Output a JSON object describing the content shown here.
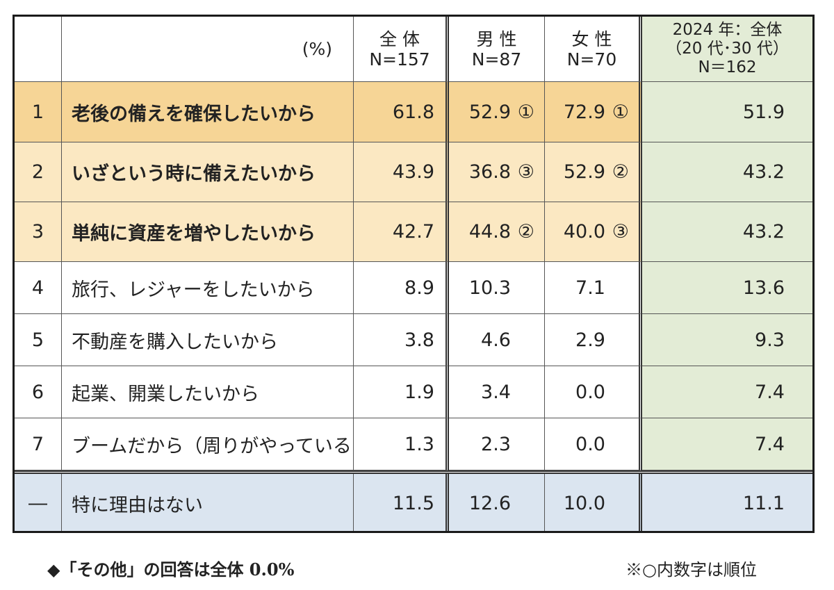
{
  "header": {
    "unit": "(%)",
    "all": {
      "line1": "全 体",
      "line2": "N=157"
    },
    "male": {
      "line1": "男 性",
      "line2": "N=87"
    },
    "female": {
      "line1": "女 性",
      "line2": "N=70"
    },
    "prev": {
      "line1": "2024 年：全体",
      "line2": "（20 代･30 代）",
      "line3": "N＝162"
    }
  },
  "rows": [
    {
      "rank": "1",
      "label": "老後の備えを確保したいから",
      "all": "61.8",
      "male": "52.9",
      "male_rank": "①",
      "female": "72.9",
      "female_rank": "①",
      "prev": "51.9"
    },
    {
      "rank": "2",
      "label": "いざという時に備えたいから",
      "all": "43.9",
      "male": "36.8",
      "male_rank": "③",
      "female": "52.9",
      "female_rank": "②",
      "prev": "43.2"
    },
    {
      "rank": "3",
      "label": "単純に資産を増やしたいから",
      "all": "42.7",
      "male": "44.8",
      "male_rank": "②",
      "female": "40.0",
      "female_rank": "③",
      "prev": "43.2"
    },
    {
      "rank": "4",
      "label": "旅行、レジャーをしたいから",
      "all": "8.9",
      "male": "10.3",
      "male_rank": "",
      "female": "7.1",
      "female_rank": "",
      "prev": "13.6"
    },
    {
      "rank": "5",
      "label": "不動産を購入したいから",
      "all": "3.8",
      "male": "4.6",
      "male_rank": "",
      "female": "2.9",
      "female_rank": "",
      "prev": "9.3"
    },
    {
      "rank": "6",
      "label": "起業、開業したいから",
      "all": "1.9",
      "male": "3.4",
      "male_rank": "",
      "female": "0.0",
      "female_rank": "",
      "prev": "7.4"
    },
    {
      "rank": "7",
      "label": "ブームだから（周りがやっているから）",
      "all": "1.3",
      "male": "2.3",
      "male_rank": "",
      "female": "0.0",
      "female_rank": "",
      "prev": "7.4"
    },
    {
      "rank": "―",
      "label": "特に理由はない",
      "all": "11.5",
      "male": "12.6",
      "male_rank": "",
      "female": "10.0",
      "female_rank": "",
      "prev": "11.1"
    }
  ],
  "footer": {
    "note_left": "◆「その他」の回答は全体 0.0%",
    "note_right": "※○内数字は順位"
  },
  "colors": {
    "top1": "#f6d596",
    "top23": "#fbe8c2",
    "prev_column": "#e3ecd6",
    "no_reason_row": "#dbe5f0"
  }
}
